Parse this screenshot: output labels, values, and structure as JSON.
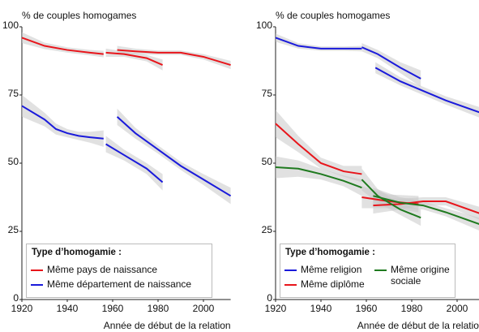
{
  "chart_data": [
    {
      "type": "line",
      "ylabel": "% de couples homogames",
      "xlabel": "Année de début de la relation",
      "xlim": [
        1920,
        2012
      ],
      "ylim": [
        0,
        100
      ],
      "xticks": [
        1920,
        1940,
        1960,
        1980,
        2000
      ],
      "yticks": [
        0,
        25,
        50,
        75,
        100
      ],
      "legend_title": "Type d’homogamie :",
      "legend_columns": 1,
      "series": [
        {
          "name": "Même pays de naissance",
          "color": "#e8151b",
          "segments": [
            {
              "x": [
                1920,
                1930,
                1940,
                1950,
                1956
              ],
              "values": [
                96,
                93,
                91.5,
                90.5,
                90
              ],
              "ci": [
                2,
                1.2,
                1,
                1,
                1.2
              ]
            },
            {
              "x": [
                1957,
                1965,
                1975,
                1982
              ],
              "values": [
                90.5,
                90,
                88.5,
                86
              ],
              "ci": [
                1.5,
                1,
                1.2,
                2
              ]
            },
            {
              "x": [
                1962,
                1970,
                1980,
                1990,
                2000,
                2012
              ],
              "values": [
                91.5,
                91,
                90.5,
                90.5,
                89,
                86
              ],
              "ci": [
                1.5,
                1,
                0.8,
                0.8,
                1,
                1.5
              ]
            }
          ]
        },
        {
          "name": "Même département de naissance",
          "color": "#1a1adb",
          "segments": [
            {
              "x": [
                1920,
                1930,
                1935,
                1940,
                1945,
                1950,
                1956
              ],
              "values": [
                71,
                66,
                62.5,
                61,
                60,
                59.5,
                59
              ],
              "ci": [
                4,
                2.5,
                2,
                1.5,
                1.5,
                2,
                3
              ]
            },
            {
              "x": [
                1957,
                1965,
                1975,
                1982
              ],
              "values": [
                57,
                53,
                48,
                43
              ],
              "ci": [
                3,
                2,
                2,
                3
              ]
            },
            {
              "x": [
                1962,
                1970,
                1980,
                1990,
                2000,
                2012
              ],
              "values": [
                67,
                61,
                55,
                49,
                44,
                38
              ],
              "ci": [
                3,
                2,
                1.5,
                1.5,
                2,
                3
              ]
            }
          ]
        }
      ]
    },
    {
      "type": "line",
      "ylabel": "% de couples homogames",
      "xlabel": "Année de début de la relation",
      "xlim": [
        1920,
        2012
      ],
      "ylim": [
        0,
        100
      ],
      "xticks": [
        1920,
        1940,
        1960,
        1980,
        2000
      ],
      "yticks": [
        0,
        25,
        50,
        75,
        100
      ],
      "legend_title": "Type d’homogamie :",
      "legend_columns": 2,
      "series": [
        {
          "name": "Même religion",
          "color": "#1a1adb",
          "segments": [
            {
              "x": [
                1920,
                1930,
                1940,
                1950,
                1958
              ],
              "values": [
                96,
                93,
                92,
                92,
                92
              ],
              "ci": [
                1.5,
                1,
                0.8,
                0.8,
                1
              ]
            },
            {
              "x": [
                1958,
                1965,
                1975,
                1984
              ],
              "values": [
                92.5,
                90,
                85,
                81
              ],
              "ci": [
                1.5,
                1.5,
                2,
                3
              ]
            },
            {
              "x": [
                1964,
                1975,
                1985,
                1995,
                2012
              ],
              "values": [
                85,
                80,
                76.5,
                73,
                68
              ],
              "ci": [
                2,
                1.5,
                1.5,
                1.5,
                2
              ]
            }
          ]
        },
        {
          "name": "Même diplôme",
          "color": "#e8151b",
          "segments": [
            {
              "x": [
                1920,
                1930,
                1940,
                1950,
                1958
              ],
              "values": [
                64.5,
                57,
                50,
                47,
                46
              ],
              "ci": [
                5,
                3,
                2,
                2,
                3
              ]
            },
            {
              "x": [
                1958,
                1970,
                1983
              ],
              "values": [
                37.5,
                36,
                35
              ],
              "ci": [
                4,
                2.5,
                3
              ]
            },
            {
              "x": [
                1963,
                1975,
                1985,
                1995,
                2012
              ],
              "values": [
                34.5,
                35,
                36,
                36,
                31
              ],
              "ci": [
                3,
                2,
                1.5,
                1.5,
                2.5
              ]
            }
          ]
        },
        {
          "name": "Même origine sociale",
          "color": "#1f7a1f",
          "segments": [
            {
              "x": [
                1920,
                1930,
                1940,
                1950,
                1958
              ],
              "values": [
                48.5,
                48,
                46,
                43.5,
                41
              ],
              "ci": [
                4,
                3,
                2,
                2,
                3
              ]
            },
            {
              "x": [
                1958,
                1965,
                1975,
                1984
              ],
              "values": [
                44,
                38,
                33,
                30
              ],
              "ci": [
                4,
                2.5,
                2,
                3
              ]
            },
            {
              "x": [
                1963,
                1975,
                1985,
                1995,
                2012
              ],
              "values": [
                38,
                35.5,
                34.5,
                32,
                27
              ],
              "ci": [
                3,
                2,
                1.5,
                1.5,
                2.5
              ]
            }
          ]
        }
      ]
    }
  ]
}
